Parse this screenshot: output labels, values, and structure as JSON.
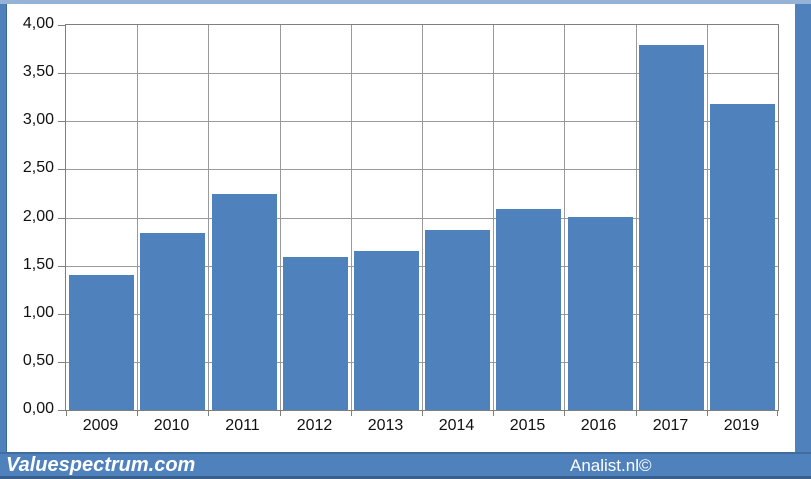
{
  "chart_data": {
    "type": "bar",
    "categories": [
      "2009",
      "2010",
      "2011",
      "2012",
      "2013",
      "2014",
      "2015",
      "2016",
      "2017",
      "2019"
    ],
    "values": [
      1.4,
      1.84,
      2.24,
      1.59,
      1.65,
      1.87,
      2.09,
      2.0,
      3.79,
      3.18
    ],
    "title": "",
    "xlabel": "",
    "ylabel": "",
    "ylim": [
      0,
      4
    ],
    "y_tick_step": 0.5,
    "y_tick_labels_top_to_bottom": [
      "4,00",
      "3,50",
      "3,00",
      "2,50",
      "2,00",
      "1,50",
      "1,00",
      "0,50",
      "0,00"
    ],
    "decimal_separator": ",",
    "grid": true,
    "legend": "none",
    "bar_color": "#4f81bd",
    "gridline_color": "#9a9a9a",
    "axis_color": "#7f7f7f"
  },
  "footer": {
    "left_brand": "Valuespectrum.com",
    "right_brand": "Analist.nl©",
    "background": "#4f81bd",
    "text_color": "#ffffff"
  },
  "frame": {
    "border_color": "#4f81bd",
    "top_line_color": "#95b3d7"
  }
}
